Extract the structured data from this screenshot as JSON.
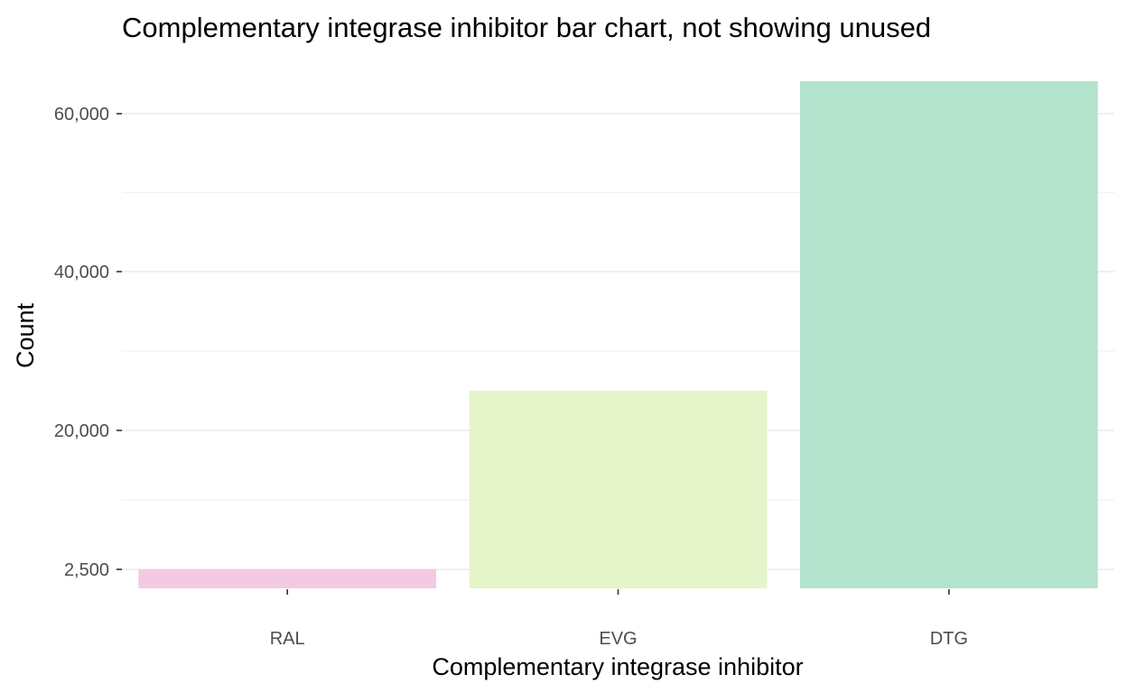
{
  "chart_data": {
    "type": "bar",
    "title": "Complementary integrase inhibitor bar chart, not showing unused",
    "xlabel": "Complementary integrase inhibitor",
    "ylabel": "Count",
    "categories": [
      "RAL",
      "EVG",
      "DTG"
    ],
    "values": [
      2500,
      25000,
      64000
    ],
    "colors": [
      "#f4c9e4",
      "#e5f5c9",
      "#b3e2cd"
    ],
    "y_axis": {
      "ticks": [
        2500,
        20000,
        40000,
        60000
      ],
      "tick_labels": [
        "2,500",
        "20,000",
        "40,000",
        "60,000"
      ],
      "baseline": 0,
      "ylim": [
        0,
        64000
      ]
    },
    "grid": true,
    "legend": "none"
  }
}
